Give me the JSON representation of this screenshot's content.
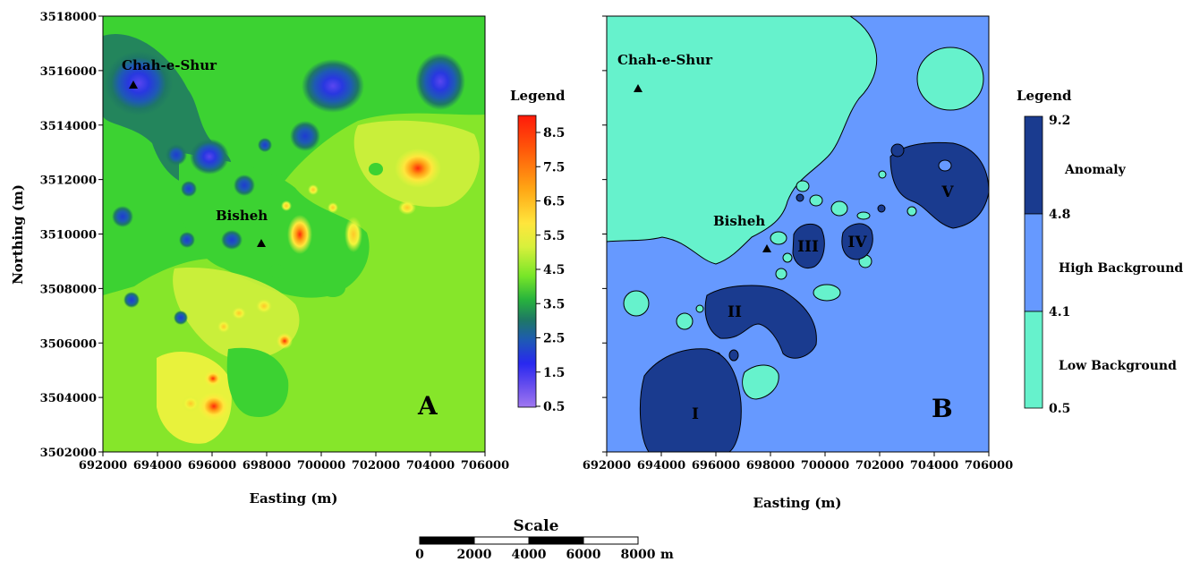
{
  "map_a": {
    "panel_label": "A",
    "x_axis_title": "Easting (m)",
    "y_axis_title": "Northing (m)",
    "x_ticks": [
      "692000",
      "694000",
      "696000",
      "698000",
      "700000",
      "702000",
      "704000",
      "706000"
    ],
    "y_ticks": [
      "3518000",
      "3516000",
      "3514000",
      "3512000",
      "3510000",
      "3508000",
      "3506000",
      "3504000",
      "3502000"
    ],
    "locations": [
      {
        "name": "Chah-e-Shur"
      },
      {
        "name": "Bisheh"
      }
    ],
    "legend": {
      "title": "Legend",
      "values": [
        "8.5",
        "7.5",
        "6.5",
        "5.5",
        "4.5",
        "3.5",
        "2.5",
        "1.5",
        "0.5"
      ],
      "colors": [
        "#ff1a0a",
        "#ff4a0a",
        "#ff7a0a",
        "#ffa514",
        "#ffc828",
        "#ffe63c",
        "#f2f53c",
        "#d0f03c",
        "#a8ec3c",
        "#78e628",
        "#3cd232",
        "#28b43c",
        "#1e7864",
        "#1e5ab4",
        "#1e3cd2",
        "#2828f0",
        "#5a46f0",
        "#825ae6",
        "#a078f0"
      ]
    },
    "colors": {
      "background_green": "#86e62a"
    }
  },
  "map_b": {
    "panel_label": "B",
    "x_axis_title": "Easting (m)",
    "x_ticks": [
      "692000",
      "694000",
      "696000",
      "698000",
      "700000",
      "702000",
      "704000",
      "706000"
    ],
    "locations": [
      {
        "name": "Chah-e-Shur"
      },
      {
        "name": "Bisheh"
      }
    ],
    "anomaly_labels": [
      "I",
      "II",
      "III",
      "IV",
      "V"
    ],
    "legend": {
      "title": "Legend",
      "ticks": [
        "9.2",
        "4.8",
        "4.1",
        "0.5"
      ],
      "classes": [
        {
          "label": "Anomaly",
          "color": "#1a3b8f"
        },
        {
          "label": "High Background",
          "color": "#6699ff"
        },
        {
          "label": "Low Background",
          "color": "#66f2cc"
        }
      ]
    }
  },
  "scale_bar": {
    "title": "Scale",
    "ticks": [
      "0",
      "2000",
      "4000",
      "6000",
      "8000"
    ],
    "unit": "m"
  }
}
